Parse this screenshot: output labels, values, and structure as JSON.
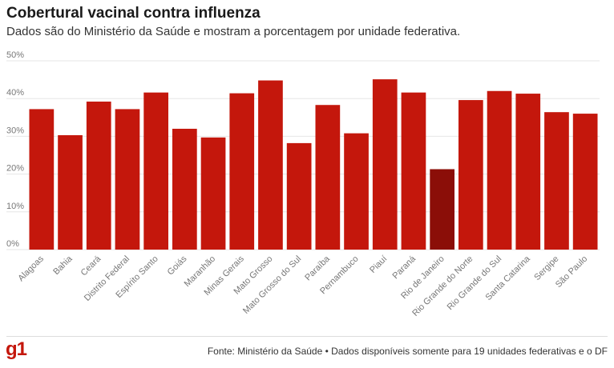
{
  "header": {
    "title": "Cobertural vacinal contra influenza",
    "subtitle": "Dados são do Ministério da Saúde e mostram a porcentagem por unidade federativa."
  },
  "footer": {
    "logo_text": "g1",
    "source": "Fonte: Ministério da Saúde • Dados disponíveis somente para 19 unidades federativas e o DF"
  },
  "colors": {
    "bar": "#c4170c",
    "highlight": "#8b0e08",
    "grid": "#e6e6e6",
    "tick_text": "#777777"
  },
  "chart_data": {
    "type": "bar",
    "title": "Cobertural vacinal contra influenza",
    "categories": [
      "Alagoas",
      "Bahia",
      "Ceará",
      "Distrito Federal",
      "Espírito Santo",
      "Goiás",
      "Maranhão",
      "Minas Gerais",
      "Mato Grosso",
      "Mato Grosso do Sul",
      "Paraíba",
      "Pernambuco",
      "Piauí",
      "Paraná",
      "Rio de Janeiro",
      "Rio Grande do Norte",
      "Rio Grande do Sul",
      "Santa Catarina",
      "Sergipe",
      "São Paulo"
    ],
    "values": [
      37.2,
      30.3,
      39.2,
      37.2,
      41.6,
      32.0,
      29.7,
      41.4,
      44.8,
      28.2,
      38.3,
      30.8,
      45.1,
      41.6,
      21.3,
      39.6,
      42.0,
      41.3,
      36.4,
      36.0
    ],
    "highlight": "Rio de Janeiro",
    "ylim": [
      0,
      50
    ],
    "yticks": [
      0,
      10,
      20,
      30,
      40,
      50
    ],
    "ytick_labels": [
      "0%",
      "10%",
      "20%",
      "30%",
      "40%",
      "50%"
    ],
    "grid": true,
    "legend": "none"
  }
}
